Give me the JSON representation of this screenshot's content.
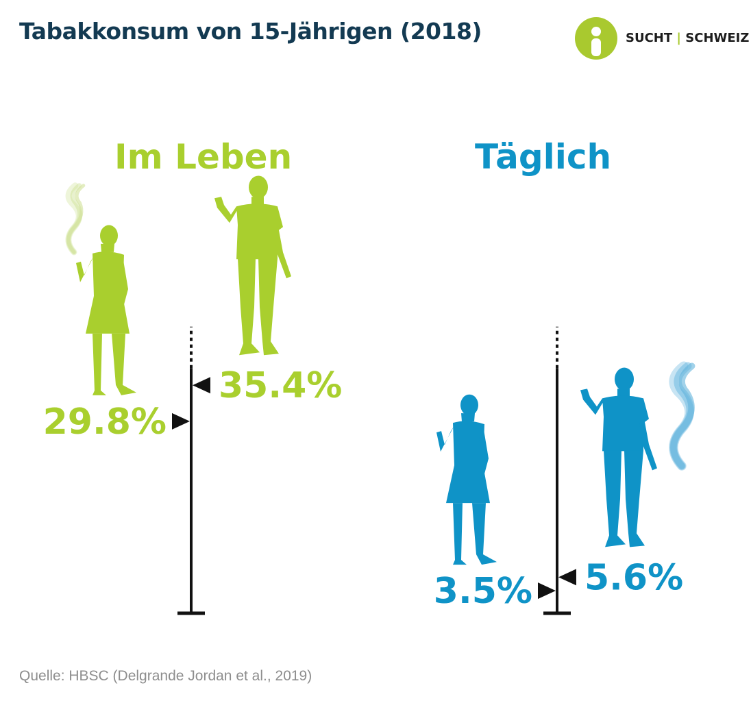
{
  "title": "Tabakkonsum von 15-Jährigen (2018)",
  "logo": {
    "left": "SUCHT",
    "separator": "|",
    "right": "SCHWEIZ"
  },
  "colors": {
    "lifetime": "#a9cf2e",
    "daily": "#0f93c7",
    "title": "#133a52",
    "axis": "#111111"
  },
  "icons": [
    "female-smoker-icon",
    "male-smoker-icon",
    "smoke-icon",
    "marker-arrow-icon"
  ],
  "source": "Quelle: HBSC (Delgrande Jordan et al., 2019)",
  "chart_data": [
    {
      "type": "bar",
      "title": "Im Leben",
      "categories": [
        "Mädchen",
        "Jungen"
      ],
      "values": [
        29.8,
        35.4
      ],
      "labels": [
        "29.8%",
        "35.4%"
      ],
      "ylim": [
        0,
        50
      ]
    },
    {
      "type": "bar",
      "title": "Täglich",
      "categories": [
        "Mädchen",
        "Jungen"
      ],
      "values": [
        3.5,
        5.6
      ],
      "labels": [
        "3.5%",
        "5.6%"
      ],
      "ylim": [
        0,
        50
      ]
    }
  ]
}
